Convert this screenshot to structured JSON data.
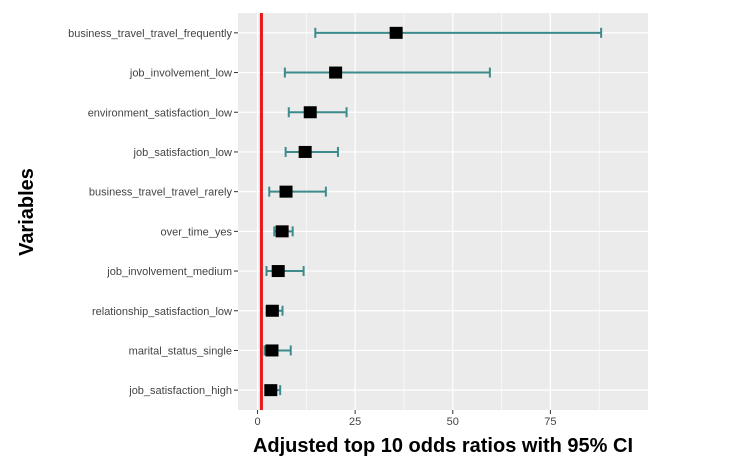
{
  "chart_data": {
    "type": "forest",
    "ylabel": "Variables",
    "xlabel": "Adjusted top 10 odds ratios with 95% CI",
    "xlim": [
      -5,
      100
    ],
    "xticks": [
      0,
      25,
      50,
      75
    ],
    "reference_line": 1,
    "grid": true,
    "categories": [
      "business_travel_travel_frequently",
      "job_involvement_low",
      "environment_satisfaction_low",
      "job_satisfaction_low",
      "business_travel_travel_rarely",
      "over_time_yes",
      "job_involvement_medium",
      "relationship_satisfaction_low",
      "marital_status_single",
      "job_satisfaction_high"
    ],
    "estimates": [
      35.5,
      20.0,
      13.5,
      12.2,
      7.3,
      6.3,
      5.3,
      3.8,
      3.7,
      3.4
    ],
    "ci_low": [
      14.8,
      7.0,
      8.0,
      7.2,
      3.0,
      4.3,
      2.3,
      2.3,
      1.8,
      2.3
    ],
    "ci_high": [
      88.0,
      59.5,
      22.8,
      20.6,
      17.5,
      9.0,
      11.8,
      6.4,
      8.5,
      5.8
    ],
    "colors": {
      "panel": "#EBEBEB",
      "grid": "#FFFFFF",
      "errorbar": "#3D8B8B",
      "point": "#000000",
      "reference": "#E41A1C"
    }
  }
}
